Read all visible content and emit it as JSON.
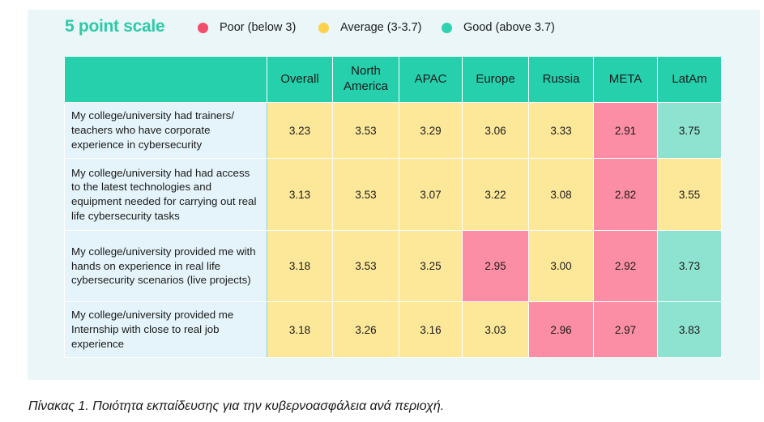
{
  "scale_title": "5 point scale",
  "legend": [
    {
      "label": "Poor (below 3)",
      "color": "#f34d6c"
    },
    {
      "label": "Average (3-3.7)",
      "color": "#fbd24a"
    },
    {
      "label": "Good (above 3.7)",
      "color": "#2ed2b0"
    }
  ],
  "colors": {
    "poor": "#fb8ea4",
    "average": "#fde89a",
    "good": "#8de3cf",
    "header": "#26d0ad"
  },
  "table": {
    "columns": [
      "Overall",
      "North America",
      "APAC",
      "Europe",
      "Russia",
      "META",
      "LatAm"
    ],
    "rows": [
      {
        "label": "My college/university had trainers/ teachers who have corporate experience in cybersecurity",
        "values": [
          "3.23",
          "3.53",
          "3.29",
          "3.06",
          "3.33",
          "2.91",
          "3.75"
        ],
        "ratings": [
          "average",
          "average",
          "average",
          "average",
          "average",
          "poor",
          "good"
        ]
      },
      {
        "label": "My college/university had had access to the latest technologies and equipment needed for carrying out real life cybersecurity tasks",
        "values": [
          "3.13",
          "3.53",
          "3.07",
          "3.22",
          "3.08",
          "2.82",
          "3.55"
        ],
        "ratings": [
          "average",
          "average",
          "average",
          "average",
          "average",
          "poor",
          "average"
        ]
      },
      {
        "label": "My college/university provided me with hands on experience in real life cybersecurity scenarios (live projects)",
        "values": [
          "3.18",
          "3.53",
          "3.25",
          "2.95",
          "3.00",
          "2.92",
          "3.73"
        ],
        "ratings": [
          "average",
          "average",
          "average",
          "poor",
          "average",
          "poor",
          "good"
        ]
      },
      {
        "label": "My college/university provided me Internship with close to real job experience",
        "values": [
          "3.18",
          "3.26",
          "3.16",
          "3.03",
          "2.96",
          "2.97",
          "3.83"
        ],
        "ratings": [
          "average",
          "average",
          "average",
          "average",
          "poor",
          "poor",
          "good"
        ]
      }
    ]
  },
  "caption": "Πίνακας 1. Ποιότητα εκπαίδευσης για την κυβερνοασφάλεια ανά περιοχή."
}
